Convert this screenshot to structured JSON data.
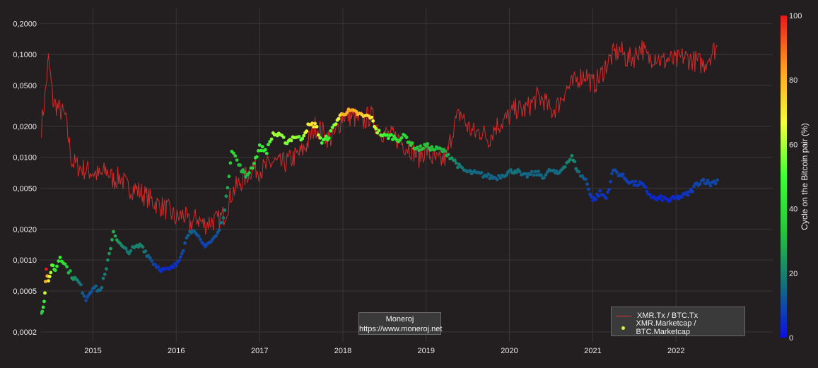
{
  "chart_data": {
    "type": "line",
    "title": "",
    "xlabel": "",
    "ylabel": "",
    "yscale": "log",
    "ylim": [
      0.00016,
      0.28
    ],
    "xlim": [
      "2014-05-15",
      "2023-03-01"
    ],
    "grid": true,
    "x_ticks": [
      "2015",
      "2016",
      "2017",
      "2018",
      "2019",
      "2020",
      "2021",
      "2022"
    ],
    "y_ticks": [
      {
        "value": 0.0002,
        "label": "0,0002"
      },
      {
        "value": 0.0005,
        "label": "0,0005"
      },
      {
        "value": 0.001,
        "label": "0,0010"
      },
      {
        "value": 0.002,
        "label": "0,0020"
      },
      {
        "value": 0.005,
        "label": "0,0050"
      },
      {
        "value": 0.01,
        "label": "0,0100"
      },
      {
        "value": 0.02,
        "label": "0,0200"
      },
      {
        "value": 0.05,
        "label": "0,0500"
      },
      {
        "value": 0.1,
        "label": "0,1000"
      },
      {
        "value": 0.2,
        "label": "0,2000"
      }
    ],
    "series": [
      {
        "name": "XMR.Tx / BTC.Tx",
        "kind": "line",
        "color": "#d42a2a",
        "points": [
          [
            "2014-05-20",
            0.02
          ],
          [
            "2014-06-05",
            0.04
          ],
          [
            "2014-06-20",
            0.09
          ],
          [
            "2014-07-10",
            0.035
          ],
          [
            "2014-08-01",
            0.03
          ],
          [
            "2014-09-01",
            0.025
          ],
          [
            "2014-10-01",
            0.009
          ],
          [
            "2014-11-01",
            0.008
          ],
          [
            "2014-12-01",
            0.0075
          ],
          [
            "2015-01-01",
            0.0072
          ],
          [
            "2015-02-01",
            0.0065
          ],
          [
            "2015-03-01",
            0.0075
          ],
          [
            "2015-04-01",
            0.006
          ],
          [
            "2015-05-01",
            0.0065
          ],
          [
            "2015-06-01",
            0.005
          ],
          [
            "2015-07-01",
            0.005
          ],
          [
            "2015-08-01",
            0.0045
          ],
          [
            "2015-09-01",
            0.004
          ],
          [
            "2015-10-01",
            0.0036
          ],
          [
            "2015-11-01",
            0.0033
          ],
          [
            "2015-12-01",
            0.003
          ],
          [
            "2016-01-01",
            0.0025
          ],
          [
            "2016-02-01",
            0.0028
          ],
          [
            "2016-03-01",
            0.0022
          ],
          [
            "2016-04-01",
            0.0026
          ],
          [
            "2016-05-01",
            0.0022
          ],
          [
            "2016-06-01",
            0.0024
          ],
          [
            "2016-07-01",
            0.0024
          ],
          [
            "2016-08-01",
            0.0028
          ],
          [
            "2016-09-01",
            0.0045
          ],
          [
            "2016-10-01",
            0.0055
          ],
          [
            "2016-11-01",
            0.0065
          ],
          [
            "2016-12-01",
            0.008
          ],
          [
            "2017-01-01",
            0.0075
          ],
          [
            "2017-02-01",
            0.008
          ],
          [
            "2017-03-01",
            0.009
          ],
          [
            "2017-04-01",
            0.0085
          ],
          [
            "2017-05-01",
            0.009
          ],
          [
            "2017-06-01",
            0.01
          ],
          [
            "2017-07-01",
            0.011
          ],
          [
            "2017-08-01",
            0.014
          ],
          [
            "2017-09-01",
            0.02
          ],
          [
            "2017-10-01",
            0.018
          ],
          [
            "2017-11-01",
            0.015
          ],
          [
            "2017-12-01",
            0.017
          ],
          [
            "2018-01-01",
            0.026
          ],
          [
            "2018-02-01",
            0.025
          ],
          [
            "2018-03-01",
            0.024
          ],
          [
            "2018-04-01",
            0.022
          ],
          [
            "2018-05-01",
            0.026
          ],
          [
            "2018-06-01",
            0.02
          ],
          [
            "2018-07-01",
            0.017
          ],
          [
            "2018-08-01",
            0.016
          ],
          [
            "2018-09-01",
            0.015
          ],
          [
            "2018-10-01",
            0.013
          ],
          [
            "2018-11-01",
            0.012
          ],
          [
            "2018-12-01",
            0.01
          ],
          [
            "2019-01-01",
            0.012
          ],
          [
            "2019-02-01",
            0.0095
          ],
          [
            "2019-03-01",
            0.009
          ],
          [
            "2019-04-01",
            0.01
          ],
          [
            "2019-05-01",
            0.02
          ],
          [
            "2019-06-01",
            0.027
          ],
          [
            "2019-07-01",
            0.02
          ],
          [
            "2019-08-01",
            0.017
          ],
          [
            "2019-09-01",
            0.018
          ],
          [
            "2019-10-01",
            0.015
          ],
          [
            "2019-11-01",
            0.02
          ],
          [
            "2019-12-01",
            0.022
          ],
          [
            "2020-01-01",
            0.025
          ],
          [
            "2020-02-01",
            0.03
          ],
          [
            "2020-03-01",
            0.028
          ],
          [
            "2020-04-01",
            0.032
          ],
          [
            "2020-05-01",
            0.038
          ],
          [
            "2020-06-01",
            0.036
          ],
          [
            "2020-07-01",
            0.028
          ],
          [
            "2020-08-01",
            0.032
          ],
          [
            "2020-09-01",
            0.045
          ],
          [
            "2020-10-01",
            0.05
          ],
          [
            "2020-11-01",
            0.06
          ],
          [
            "2020-12-01",
            0.065
          ],
          [
            "2021-01-01",
            0.05
          ],
          [
            "2021-02-01",
            0.06
          ],
          [
            "2021-03-01",
            0.08
          ],
          [
            "2021-04-01",
            0.1
          ],
          [
            "2021-05-01",
            0.11
          ],
          [
            "2021-06-01",
            0.09
          ],
          [
            "2021-07-01",
            0.095
          ],
          [
            "2021-08-01",
            0.12
          ],
          [
            "2021-09-01",
            0.09
          ],
          [
            "2021-10-01",
            0.1
          ],
          [
            "2021-11-01",
            0.085
          ],
          [
            "2021-12-01",
            0.09
          ],
          [
            "2022-01-01",
            0.085
          ],
          [
            "2022-02-01",
            0.095
          ],
          [
            "2022-03-01",
            0.09
          ],
          [
            "2022-04-01",
            0.085
          ],
          [
            "2022-05-01",
            0.08
          ],
          [
            "2022-06-01",
            0.1
          ],
          [
            "2022-07-01",
            0.12
          ]
        ]
      },
      {
        "name": "XMR.Marketcap / BTC.Marketcap",
        "kind": "markers",
        "color_scale": "cycle",
        "points": [
          [
            "2014-05-20",
            0.0003,
            35
          ],
          [
            "2014-06-01",
            0.0004,
            45
          ],
          [
            "2014-06-10",
            0.0008,
            100
          ],
          [
            "2014-06-20",
            0.0006,
            70
          ],
          [
            "2014-07-05",
            0.0009,
            55
          ],
          [
            "2014-07-20",
            0.0008,
            42
          ],
          [
            "2014-08-10",
            0.0011,
            45
          ],
          [
            "2014-09-01",
            0.0009,
            38
          ],
          [
            "2014-10-01",
            0.0007,
            25
          ],
          [
            "2014-11-01",
            0.0006,
            18
          ],
          [
            "2014-12-01",
            0.00042,
            10
          ],
          [
            "2015-01-01",
            0.00055,
            12
          ],
          [
            "2015-02-01",
            0.0005,
            15
          ],
          [
            "2015-03-01",
            0.0008,
            20
          ],
          [
            "2015-04-01",
            0.0019,
            30
          ],
          [
            "2015-05-01",
            0.0014,
            22
          ],
          [
            "2015-06-01",
            0.0012,
            18
          ],
          [
            "2015-07-01",
            0.0013,
            20
          ],
          [
            "2015-08-01",
            0.0014,
            21
          ],
          [
            "2015-09-01",
            0.0011,
            14
          ],
          [
            "2015-10-01",
            0.0009,
            8
          ],
          [
            "2015-11-01",
            0.0008,
            5
          ],
          [
            "2015-12-01",
            0.0008,
            4
          ],
          [
            "2016-01-01",
            0.0009,
            6
          ],
          [
            "2016-02-01",
            0.0013,
            10
          ],
          [
            "2016-03-01",
            0.002,
            15
          ],
          [
            "2016-04-01",
            0.0017,
            12
          ],
          [
            "2016-05-01",
            0.0014,
            8
          ],
          [
            "2016-06-01",
            0.0015,
            10
          ],
          [
            "2016-07-01",
            0.0018,
            12
          ],
          [
            "2016-08-01",
            0.003,
            20
          ],
          [
            "2016-09-01",
            0.012,
            40
          ],
          [
            "2016-10-01",
            0.0085,
            32
          ],
          [
            "2016-11-01",
            0.0065,
            30
          ],
          [
            "2016-12-01",
            0.0082,
            36
          ],
          [
            "2017-01-01",
            0.0125,
            45
          ],
          [
            "2017-02-01",
            0.0115,
            44
          ],
          [
            "2017-03-01",
            0.017,
            60
          ],
          [
            "2017-04-01",
            0.016,
            58
          ],
          [
            "2017-05-01",
            0.014,
            55
          ],
          [
            "2017-06-01",
            0.016,
            60
          ],
          [
            "2017-07-01",
            0.015,
            52
          ],
          [
            "2017-08-01",
            0.02,
            70
          ],
          [
            "2017-09-01",
            0.021,
            72
          ],
          [
            "2017-10-01",
            0.014,
            50
          ],
          [
            "2017-11-01",
            0.016,
            48
          ],
          [
            "2017-12-01",
            0.022,
            60
          ],
          [
            "2018-01-01",
            0.027,
            80
          ],
          [
            "2018-02-01",
            0.028,
            82
          ],
          [
            "2018-03-01",
            0.027,
            80
          ],
          [
            "2018-04-01",
            0.025,
            75
          ],
          [
            "2018-05-01",
            0.025,
            72
          ],
          [
            "2018-06-01",
            0.018,
            58
          ],
          [
            "2018-07-01",
            0.016,
            48
          ],
          [
            "2018-08-01",
            0.016,
            44
          ],
          [
            "2018-09-01",
            0.015,
            40
          ],
          [
            "2018-10-01",
            0.016,
            38
          ],
          [
            "2018-11-01",
            0.013,
            35
          ],
          [
            "2018-12-01",
            0.012,
            32
          ],
          [
            "2019-01-01",
            0.013,
            33
          ],
          [
            "2019-02-01",
            0.012,
            32
          ],
          [
            "2019-03-01",
            0.012,
            31
          ],
          [
            "2019-04-01",
            0.011,
            28
          ],
          [
            "2019-05-01",
            0.0095,
            22
          ],
          [
            "2019-06-01",
            0.0078,
            18
          ],
          [
            "2019-07-01",
            0.0072,
            16
          ],
          [
            "2019-08-01",
            0.007,
            15
          ],
          [
            "2019-09-01",
            0.0068,
            15
          ],
          [
            "2019-10-01",
            0.0065,
            15
          ],
          [
            "2019-11-01",
            0.0063,
            14
          ],
          [
            "2019-12-01",
            0.0067,
            15
          ],
          [
            "2020-01-01",
            0.0072,
            16
          ],
          [
            "2020-02-01",
            0.0075,
            17
          ],
          [
            "2020-03-01",
            0.0065,
            15
          ],
          [
            "2020-04-01",
            0.0068,
            15
          ],
          [
            "2020-05-01",
            0.007,
            15
          ],
          [
            "2020-06-01",
            0.0065,
            15
          ],
          [
            "2020-07-01",
            0.0075,
            16
          ],
          [
            "2020-08-01",
            0.0068,
            15
          ],
          [
            "2020-09-01",
            0.0085,
            18
          ],
          [
            "2020-10-01",
            0.01,
            22
          ],
          [
            "2020-11-01",
            0.007,
            16
          ],
          [
            "2020-12-01",
            0.006,
            12
          ],
          [
            "2021-01-01",
            0.0038,
            5
          ],
          [
            "2021-02-01",
            0.0045,
            7
          ],
          [
            "2021-03-01",
            0.004,
            6
          ],
          [
            "2021-04-01",
            0.0075,
            10
          ],
          [
            "2021-05-01",
            0.0068,
            9
          ],
          [
            "2021-06-01",
            0.006,
            8
          ],
          [
            "2021-07-01",
            0.0055,
            7
          ],
          [
            "2021-08-01",
            0.0055,
            7
          ],
          [
            "2021-09-01",
            0.0045,
            5
          ],
          [
            "2021-10-01",
            0.0039,
            4
          ],
          [
            "2021-11-01",
            0.004,
            4
          ],
          [
            "2021-12-01",
            0.0038,
            4
          ],
          [
            "2022-01-01",
            0.004,
            5
          ],
          [
            "2022-02-01",
            0.0042,
            6
          ],
          [
            "2022-03-01",
            0.0045,
            7
          ],
          [
            "2022-04-01",
            0.0055,
            9
          ],
          [
            "2022-05-01",
            0.006,
            10
          ],
          [
            "2022-06-01",
            0.0055,
            9
          ],
          [
            "2022-07-01",
            0.006,
            10
          ]
        ]
      }
    ],
    "colorbar": {
      "title": "Cycle on the Bitcoin pair (%)",
      "min": 0,
      "max": 100,
      "ticks": [
        "0",
        "20",
        "40",
        "60",
        "80",
        "100"
      ],
      "colors": [
        "#0a10e6",
        "#15707a",
        "#27c63a",
        "#3dff35",
        "#f4ff3a",
        "#ffa020",
        "#e8181c"
      ]
    },
    "legend": {
      "position": "bottom-right",
      "line_label": "XMR.Tx / BTC.Tx",
      "marker_label": "XMR.Marketcap / BTC.Marketcap"
    },
    "annotation": {
      "line1": "Moneroj",
      "line2": "https://www.moneroj.net"
    }
  }
}
